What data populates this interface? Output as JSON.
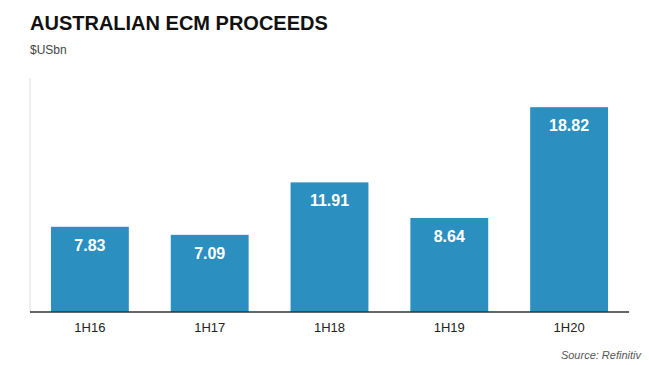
{
  "chart_data": {
    "type": "bar",
    "title": "AUSTRALIAN ECM PROCEEDS",
    "subtitle": "$USbn",
    "source": "Source: Refinitiv",
    "categories": [
      "1H16",
      "1H17",
      "1H18",
      "1H19",
      "1H20"
    ],
    "values": [
      7.83,
      7.09,
      11.91,
      8.64,
      18.82
    ],
    "color": "#2b8fc0",
    "ylim": [
      0,
      21.5
    ],
    "grid": false,
    "data_labels": true,
    "tick_labels": "x"
  }
}
